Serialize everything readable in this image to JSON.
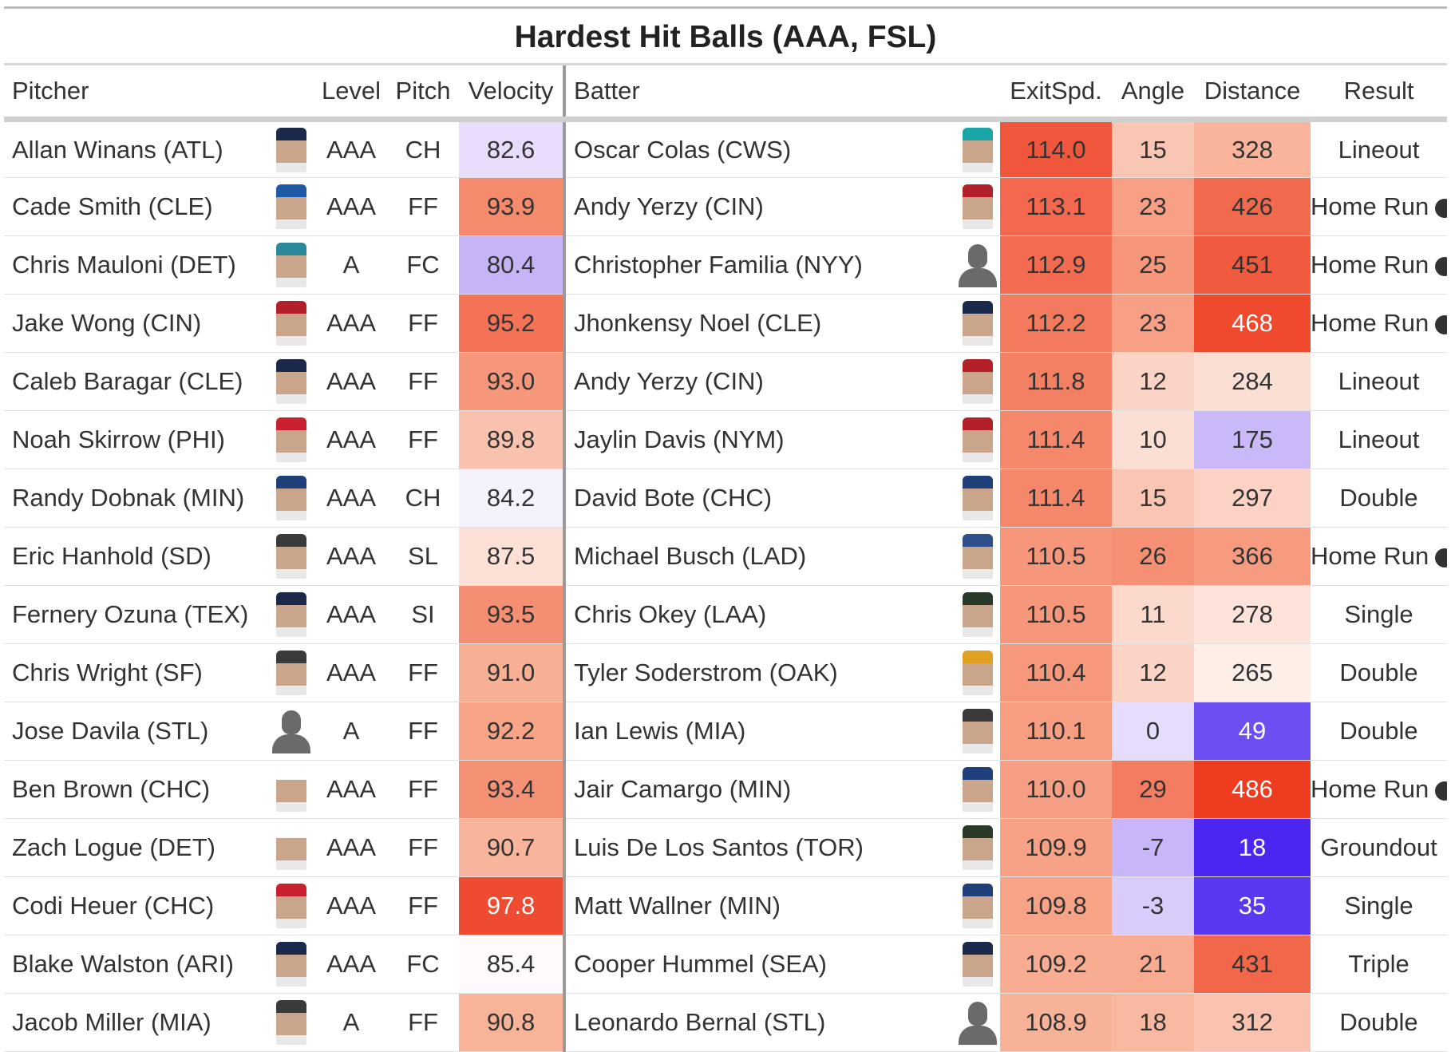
{
  "title": "Hardest Hit Balls (AAA, FSL)",
  "columns": {
    "pitcher": "Pitcher",
    "level": "Level",
    "pitch": "Pitch",
    "velocity": "Velocity",
    "batter": "Batter",
    "exit_speed": "ExitSpd.",
    "angle": "Angle",
    "distance": "Distance",
    "result": "Result"
  },
  "rows": [
    {
      "pitcher": "Allan Winans (ATL)",
      "p_cap": "#1b2a4a",
      "level": "AAA",
      "pitch": "CH",
      "velocity": "82.6",
      "vel_bg": "#e9dcfb",
      "vel_fg": "#333333",
      "batter": "Oscar Colas (CWS)",
      "b_cap": "#1aa5a8",
      "exit_speed": "114.0",
      "ex_bg": "#f0563c",
      "angle": "15",
      "ang_bg": "#f9c6b4",
      "distance": "328",
      "dist_bg": "#f9b49b",
      "dist_fg": "#333333",
      "result": "Lineout",
      "home_run": false
    },
    {
      "pitcher": "Cade Smith (CLE)",
      "p_cap": "#1f5aa6",
      "level": "AAA",
      "pitch": "FF",
      "velocity": "93.9",
      "vel_bg": "#f58a6d",
      "vel_fg": "#333333",
      "batter": "Andy Yerzy (CIN)",
      "b_cap": "#b3202a",
      "exit_speed": "113.1",
      "ex_bg": "#f3684e",
      "angle": "23",
      "ang_bg": "#f7a085",
      "distance": "426",
      "dist_bg": "#f26a4d",
      "dist_fg": "#333333",
      "result": "Home Run",
      "home_run": true
    },
    {
      "pitcher": "Chris Mauloni (DET)",
      "p_cap": "#2a8a9c",
      "level": "A",
      "pitch": "FC",
      "velocity": "80.4",
      "vel_bg": "#c7b4f7",
      "vel_fg": "#333333",
      "batter": "Christopher Familia (NYY)",
      "b_cap": "",
      "exit_speed": "112.9",
      "ex_bg": "#f36c52",
      "angle": "25",
      "ang_bg": "#f6967a",
      "distance": "451",
      "dist_bg": "#f05a3e",
      "dist_fg": "#333333",
      "result": "Home Run",
      "home_run": true
    },
    {
      "pitcher": "Jake Wong (CIN)",
      "p_cap": "#b3202a",
      "level": "AAA",
      "pitch": "FF",
      "velocity": "95.2",
      "vel_bg": "#f47356",
      "vel_fg": "#333333",
      "batter": "Jhonkensy Noel (CLE)",
      "b_cap": "#1b2a4a",
      "exit_speed": "112.2",
      "ex_bg": "#f47a5e",
      "angle": "23",
      "ang_bg": "#f7a085",
      "distance": "468",
      "dist_bg": "#ef4a2e",
      "dist_fg": "#ffffff",
      "result": "Home Run",
      "home_run": true
    },
    {
      "pitcher": "Caleb Baragar (CLE)",
      "p_cap": "#1b2a4a",
      "level": "AAA",
      "pitch": "FF",
      "velocity": "93.0",
      "vel_bg": "#f6977b",
      "vel_fg": "#333333",
      "batter": "Andy Yerzy (CIN)",
      "b_cap": "#b3202a",
      "exit_speed": "111.8",
      "ex_bg": "#f48064",
      "angle": "12",
      "ang_bg": "#fbd4c6",
      "distance": "284",
      "dist_bg": "#fcdfd4",
      "dist_fg": "#333333",
      "result": "Lineout",
      "home_run": false
    },
    {
      "pitcher": "Noah Skirrow (PHI)",
      "p_cap": "#c8202e",
      "level": "AAA",
      "pitch": "FF",
      "velocity": "89.8",
      "vel_bg": "#f9c2ae",
      "vel_fg": "#333333",
      "batter": "Jaylin Davis (NYM)",
      "b_cap": "#b3202a",
      "exit_speed": "111.4",
      "ex_bg": "#f5876b",
      "angle": "10",
      "ang_bg": "#fcdfd4",
      "distance": "175",
      "dist_bg": "#cbb8f8",
      "dist_fg": "#333333",
      "result": "Lineout",
      "home_run": false
    },
    {
      "pitcher": "Randy Dobnak (MIN)",
      "p_cap": "#1f3f7a",
      "level": "AAA",
      "pitch": "CH",
      "velocity": "84.2",
      "vel_bg": "#f6f2fd",
      "vel_fg": "#333333",
      "batter": "David Bote (CHC)",
      "b_cap": "#1f3f7a",
      "exit_speed": "111.4",
      "ex_bg": "#f5876b",
      "angle": "15",
      "ang_bg": "#f9c6b4",
      "distance": "297",
      "dist_bg": "#fbd2c3",
      "dist_fg": "#333333",
      "result": "Double",
      "home_run": false
    },
    {
      "pitcher": "Eric Hanhold (SD)",
      "p_cap": "#3a3a3a",
      "level": "AAA",
      "pitch": "SL",
      "velocity": "87.5",
      "vel_bg": "#fde1d7",
      "vel_fg": "#333333",
      "batter": "Michael Busch (LAD)",
      "b_cap": "#2f4f8a",
      "exit_speed": "110.5",
      "ex_bg": "#f6967a",
      "angle": "26",
      "ang_bg": "#f59074",
      "distance": "366",
      "dist_bg": "#f69b80",
      "dist_fg": "#333333",
      "result": "Home Run",
      "home_run": true
    },
    {
      "pitcher": "Fernery Ozuna (TEX)",
      "p_cap": "#1b2a4a",
      "level": "AAA",
      "pitch": "SI",
      "velocity": "93.5",
      "vel_bg": "#f58f73",
      "vel_fg": "#333333",
      "batter": "Chris Okey (LAA)",
      "b_cap": "#2a3a2a",
      "exit_speed": "110.5",
      "ex_bg": "#f6967a",
      "angle": "11",
      "ang_bg": "#fbdacd",
      "distance": "278",
      "dist_bg": "#fde3da",
      "dist_fg": "#333333",
      "result": "Single",
      "home_run": false
    },
    {
      "pitcher": "Chris Wright (SF)",
      "p_cap": "#3a3a3a",
      "level": "AAA",
      "pitch": "FF",
      "velocity": "91.0",
      "vel_bg": "#f8b095",
      "vel_fg": "#333333",
      "batter": "Tyler Soderstrom (OAK)",
      "b_cap": "#e0a020",
      "exit_speed": "110.4",
      "ex_bg": "#f6987c",
      "angle": "12",
      "ang_bg": "#fbd4c6",
      "distance": "265",
      "dist_bg": "#fdeee8",
      "dist_fg": "#333333",
      "result": "Double",
      "home_run": false
    },
    {
      "pitcher": "Jose Davila (STL)",
      "p_cap": "",
      "level": "A",
      "pitch": "FF",
      "velocity": "92.2",
      "vel_bg": "#f7a488",
      "vel_fg": "#333333",
      "batter": "Ian Lewis (MIA)",
      "b_cap": "#3a3a3a",
      "exit_speed": "110.1",
      "ex_bg": "#f69d82",
      "angle": "0",
      "ang_bg": "#e6dcfb",
      "distance": "49",
      "dist_bg": "#6d4ef2",
      "dist_fg": "#ffffff",
      "result": "Double",
      "home_run": false
    },
    {
      "pitcher": "Ben Brown (CHC)",
      "p_cap": "#ffffff",
      "level": "AAA",
      "pitch": "FF",
      "velocity": "93.4",
      "vel_bg": "#f59175",
      "vel_fg": "#333333",
      "batter": "Jair Camargo (MIN)",
      "b_cap": "#1f3f7a",
      "exit_speed": "110.0",
      "ex_bg": "#f69f84",
      "angle": "29",
      "ang_bg": "#f47c60",
      "distance": "486",
      "dist_bg": "#ee3c20",
      "dist_fg": "#ffffff",
      "result": "Home Run",
      "home_run": true
    },
    {
      "pitcher": "Zach Logue (DET)",
      "p_cap": "#ffffff",
      "level": "AAA",
      "pitch": "FF",
      "velocity": "90.7",
      "vel_bg": "#f8b59b",
      "vel_fg": "#333333",
      "batter": "Luis De Los Santos (TOR)",
      "b_cap": "#2a3a2a",
      "exit_speed": "109.9",
      "ex_bg": "#f7a186",
      "angle": "-7",
      "ang_bg": "#c9b6f8",
      "distance": "18",
      "dist_bg": "#4a26f0",
      "dist_fg": "#ffffff",
      "result": "Groundout",
      "home_run": false
    },
    {
      "pitcher": "Codi Heuer (CHC)",
      "p_cap": "#c8202e",
      "level": "AAA",
      "pitch": "FF",
      "velocity": "97.8",
      "vel_bg": "#ee4b30",
      "vel_fg": "#ffffff",
      "batter": "Matt Wallner (MIN)",
      "b_cap": "#1f3f7a",
      "exit_speed": "109.8",
      "ex_bg": "#f7a388",
      "angle": "-3",
      "ang_bg": "#d9cbfa",
      "distance": "35",
      "dist_bg": "#5a38f1",
      "dist_fg": "#ffffff",
      "result": "Single",
      "home_run": false
    },
    {
      "pitcher": "Blake Walston (ARI)",
      "p_cap": "#1b2a4a",
      "level": "AAA",
      "pitch": "FC",
      "velocity": "85.4",
      "vel_bg": "#fefaf9",
      "vel_fg": "#333333",
      "batter": "Cooper Hummel (SEA)",
      "b_cap": "#1b2a4a",
      "exit_speed": "109.2",
      "ex_bg": "#f8ad92",
      "angle": "21",
      "ang_bg": "#f8ab90",
      "distance": "431",
      "dist_bg": "#f26649",
      "dist_fg": "#333333",
      "result": "Triple",
      "home_run": false
    },
    {
      "pitcher": "Jacob Miller (MIA)",
      "p_cap": "#3a3a3a",
      "level": "A",
      "pitch": "FF",
      "velocity": "90.8",
      "vel_bg": "#f8b398",
      "vel_fg": "#333333",
      "batter": "Leonardo Bernal (STL)",
      "b_cap": "",
      "exit_speed": "108.9",
      "ex_bg": "#f8b298",
      "angle": "18",
      "ang_bg": "#f9b8a0",
      "distance": "312",
      "dist_bg": "#fac3af",
      "dist_fg": "#333333",
      "result": "Double",
      "home_run": false
    }
  ]
}
